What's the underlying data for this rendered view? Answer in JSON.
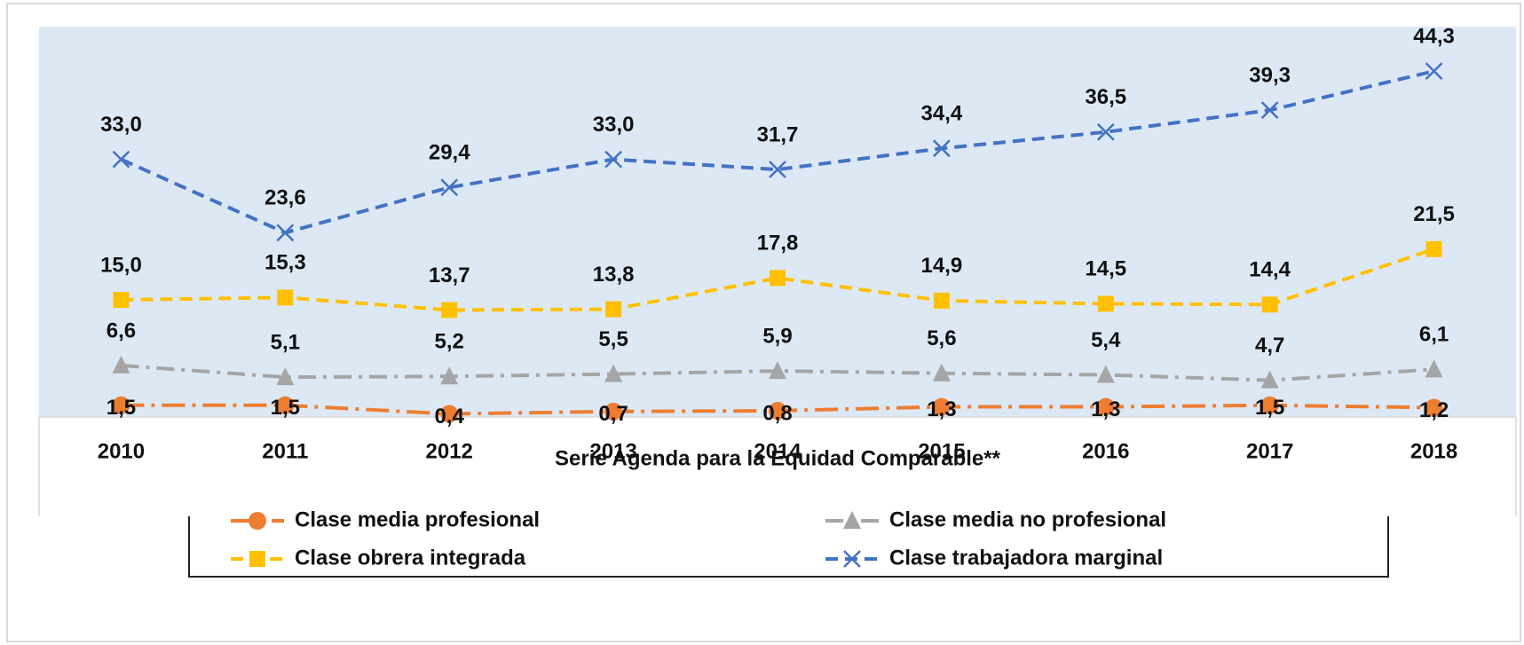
{
  "chart_data": {
    "type": "line",
    "x_label": "Serie Agenda para la Equidad Comparable**",
    "categories": [
      "2010",
      "2011",
      "2012",
      "2013",
      "2014",
      "2015",
      "2016",
      "2017",
      "2018"
    ],
    "ylim": [
      0,
      50
    ],
    "plot_background": "#dde8f5",
    "legend": "bottom",
    "series": [
      {
        "name": "Clase media profesional",
        "color": "#ed7d31",
        "marker": "circle",
        "dash": "26,8,4,8",
        "values": [
          1.5,
          1.5,
          0.4,
          0.7,
          0.8,
          1.3,
          1.3,
          1.5,
          1.2
        ],
        "value_labels": [
          "1,5",
          "1,5",
          "0,4",
          "0,7",
          "0,8",
          "1,3",
          "1,3",
          "1,5",
          "1,2"
        ]
      },
      {
        "name": "Clase media no profesional",
        "color": "#a5a5a5",
        "marker": "triangle",
        "dash": "20,8,4,8",
        "values": [
          6.6,
          5.1,
          5.2,
          5.5,
          5.9,
          5.6,
          5.4,
          4.7,
          6.1
        ],
        "value_labels": [
          "6,6",
          "5,1",
          "5,2",
          "5,5",
          "5,9",
          "5,6",
          "5,4",
          "4,7",
          "6,1"
        ]
      },
      {
        "name": "Clase obrera integrada",
        "color": "#ffc000",
        "marker": "square",
        "dash": "14,8",
        "values": [
          15.0,
          15.3,
          13.7,
          13.8,
          17.8,
          14.9,
          14.5,
          14.4,
          21.5
        ],
        "value_labels": [
          "15,0",
          "15,3",
          "13,7",
          "13,8",
          "17,8",
          "14,9",
          "14,5",
          "14,4",
          "21,5"
        ]
      },
      {
        "name": "Clase trabajadora marginal",
        "color": "#4472c4",
        "marker": "x",
        "dash": "14,8",
        "values": [
          33.0,
          23.6,
          29.4,
          33.0,
          31.7,
          34.4,
          36.5,
          39.3,
          44.3
        ],
        "value_labels": [
          "33,0",
          "23,6",
          "29,4",
          "33,0",
          "31,7",
          "34,4",
          "36,5",
          "39,3",
          "44,3"
        ]
      }
    ]
  }
}
